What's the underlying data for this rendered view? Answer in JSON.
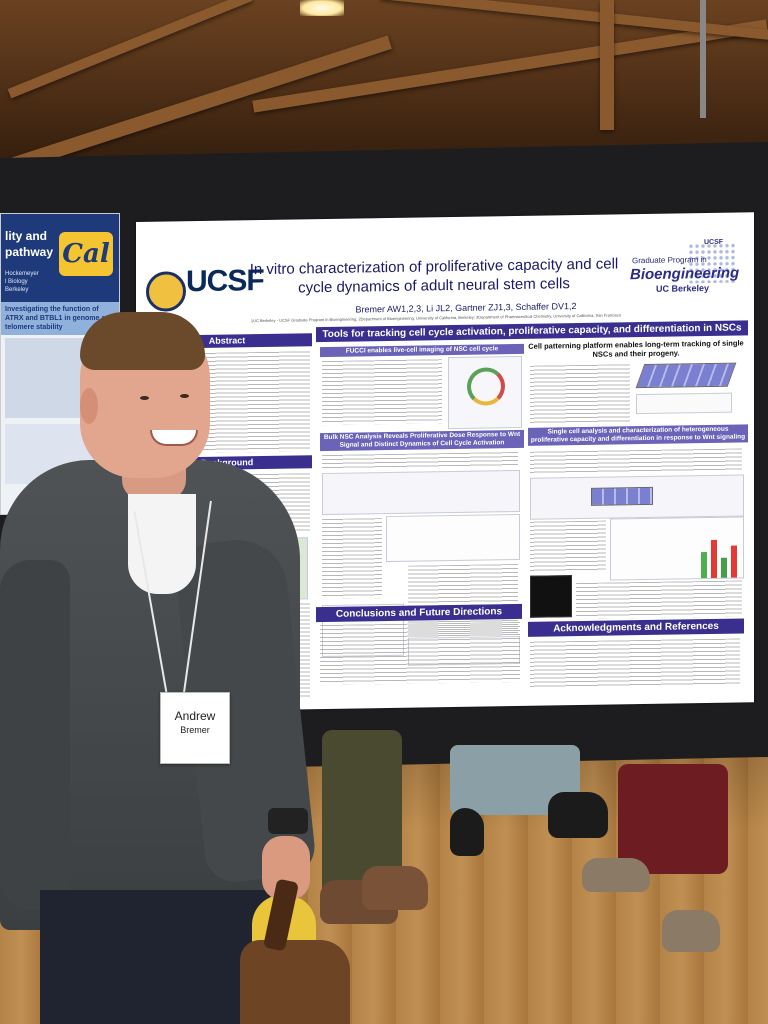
{
  "left_poster": {
    "title_lines": [
      "lity and",
      "pathway"
    ],
    "names": [
      "Hockemeyer",
      "l Biology",
      "Berkeley"
    ],
    "logo_text": "Cal",
    "subtitle": "Investigating the function of ATRX and BTBL1 in genome and telomere stability"
  },
  "poster": {
    "title": "In vitro characterization of proliferative capacity and cell cycle dynamics of adult neural stem cells",
    "authors": "Bremer AW1,2,3, Li JL2, Gartner ZJ1,3, Schaffer DV1,2",
    "affiliations": "1UC Berkeley - UCSF Graduate Program in Bioengineering; 2Department of Bioengineering, University of California, Berkeley; 3Department of Pharmaceutical Chemistry, University of California, San Francisco",
    "logo_ucsf": "UCSF",
    "program": {
      "label": "Graduate Program in",
      "name": "Bioengineering",
      "school": "UC Berkeley",
      "mini_logo": "UCSF"
    },
    "sections": {
      "abstract": "Abstract",
      "background": "Background",
      "tools": "Tools for tracking cell cycle activation, proliferative capacity, and differentiation in NSCs",
      "fucci": "FUCCI enables live-cell imaging of NSC cell cycle",
      "patterning": "Cell patterning platform enables long-term tracking of single NSCs and their progeny.",
      "bulk": "Bulk NSC Analysis Reveals Proliferative Dose Response to Wnt Signal and Distinct Dynamics of Cell Cycle Activation",
      "single_cell": "Single cell analysis and characterization of heterogeneous proliferative capacity and differentiation in response to Wnt signaling",
      "conclusions": "Conclusions and Future Directions",
      "acknowledgments": "Acknowledgments and References"
    }
  },
  "badge": {
    "first_name": "Andrew",
    "last_name": "Bremer"
  },
  "colors": {
    "section_bar": "#3a2f8f",
    "board": "#1d1d1f",
    "floor": "#b48347",
    "ceiling": "#6b4221"
  }
}
